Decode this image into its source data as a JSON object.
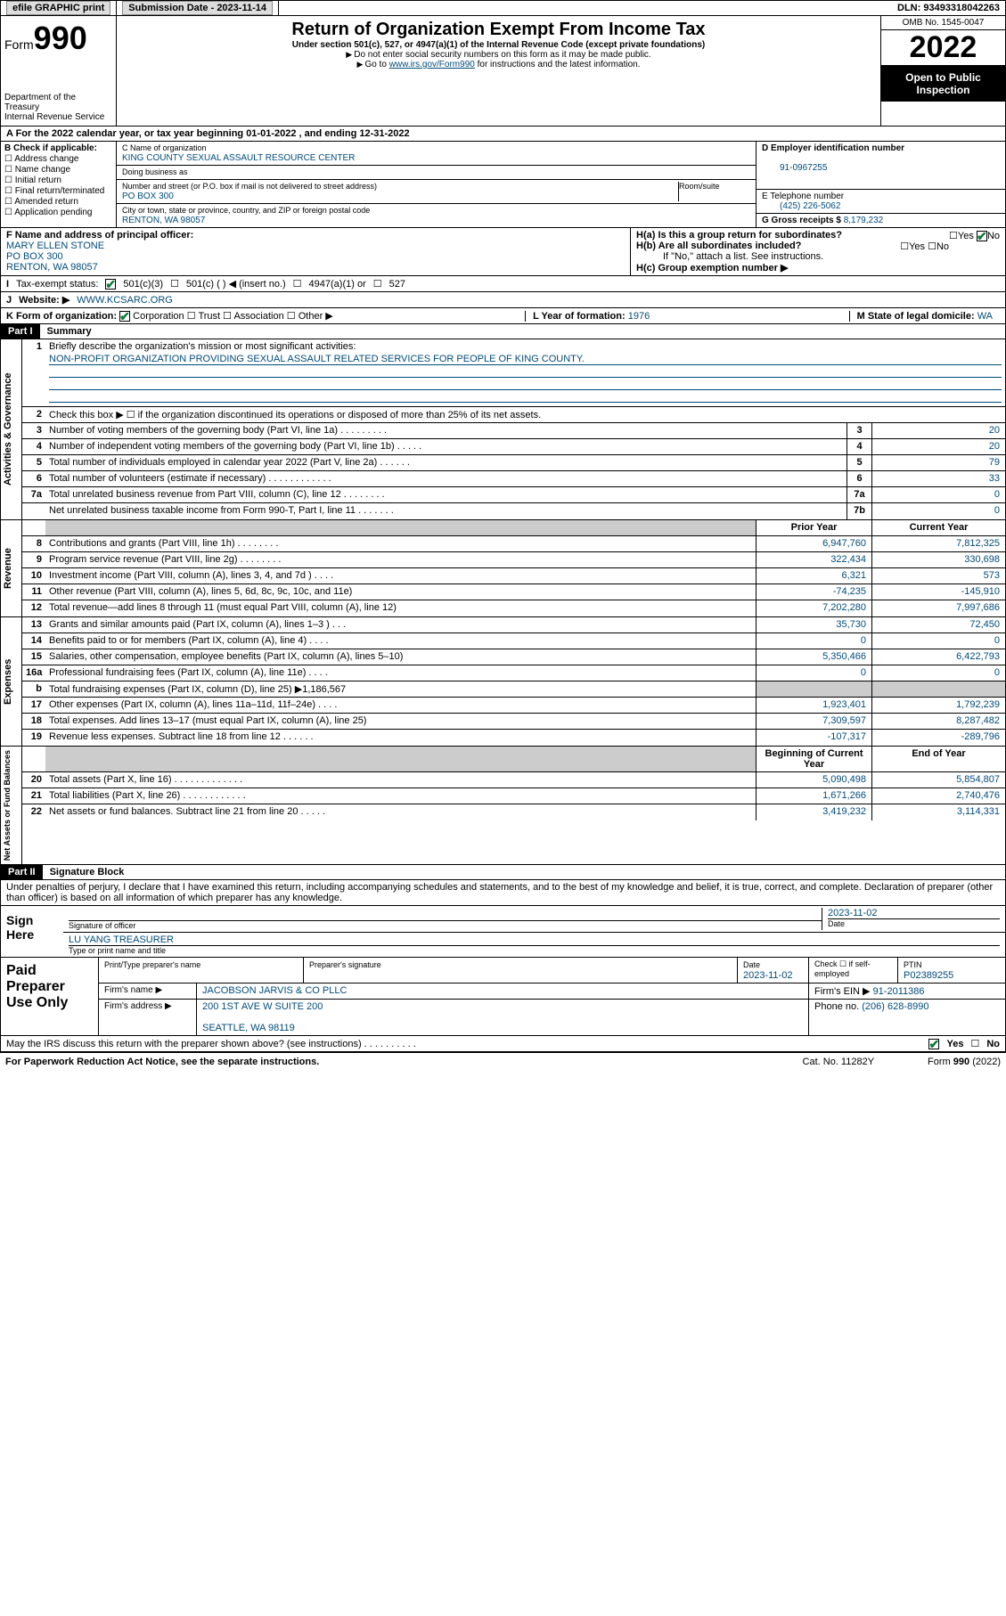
{
  "topbar": {
    "efile": "efile GRAPHIC print",
    "sub_label": "Submission Date - 2023-11-14",
    "dln": "DLN: 93493318042263"
  },
  "header": {
    "form_label": "Form",
    "form_num": "990",
    "dept": "Department of the Treasury\nInternal Revenue Service",
    "title": "Return of Organization Exempt From Income Tax",
    "sub": "Under section 501(c), 527, or 4947(a)(1) of the Internal Revenue Code (except private foundations)",
    "note1": "Do not enter social security numbers on this form as it may be made public.",
    "note2_pre": "Go to ",
    "note2_link": "www.irs.gov/Form990",
    "note2_post": " for instructions and the latest information.",
    "omb": "OMB No. 1545-0047",
    "year": "2022",
    "open": "Open to Public Inspection"
  },
  "line_a": "A For the 2022 calendar year, or tax year beginning 01-01-2022    , and ending 12-31-2022",
  "b": {
    "label": "B Check if applicable:",
    "opts": [
      "Address change",
      "Name change",
      "Initial return",
      "Final return/terminated",
      "Amended return",
      "Application pending"
    ]
  },
  "c": {
    "name_lbl": "C Name of organization",
    "name": "KING COUNTY SEXUAL ASSAULT RESOURCE CENTER",
    "dba_lbl": "Doing business as",
    "addr_lbl": "Number and street (or P.O. box if mail is not delivered to street address)",
    "room_lbl": "Room/suite",
    "addr": "PO BOX 300",
    "city_lbl": "City or town, state or province, country, and ZIP or foreign postal code",
    "city": "RENTON, WA  98057"
  },
  "d": {
    "lbl": "D Employer identification number",
    "val": "91-0967255"
  },
  "e": {
    "lbl": "E Telephone number",
    "val": "(425) 226-5062"
  },
  "g": {
    "lbl": "G Gross receipts $",
    "val": "8,179,232"
  },
  "f": {
    "lbl": "F Name and address of principal officer:",
    "name": "MARY ELLEN STONE",
    "addr1": "PO BOX 300",
    "addr2": "RENTON, WA  98057"
  },
  "h": {
    "a": "H(a)  Is this a group return for subordinates?",
    "a_yes": "Yes",
    "a_no": "No",
    "b": "H(b)  Are all subordinates included?",
    "b_yes": "Yes",
    "b_no": "No",
    "b_note": "If \"No,\" attach a list. See instructions.",
    "c": "H(c)  Group exemption number ▶"
  },
  "i": {
    "lbl": "Tax-exempt status:",
    "o1": "501(c)(3)",
    "o2": "501(c) (    ) ◀ (insert no.)",
    "o3": "4947(a)(1) or",
    "o4": "527"
  },
  "j": {
    "lbl": "Website: ▶",
    "val": "WWW.KCSARC.ORG"
  },
  "k": {
    "lbl": "K Form of organization:",
    "opts": [
      "Corporation",
      "Trust",
      "Association",
      "Other ▶"
    ]
  },
  "l": {
    "lbl": "L Year of formation:",
    "val": "1976"
  },
  "m": {
    "lbl": "M State of legal domicile:",
    "val": "WA"
  },
  "part1": {
    "hdr": "Part I",
    "title": "Summary"
  },
  "s1": {
    "lbl": "Briefly describe the organization's mission or most significant activities:",
    "mission": "NON-PROFIT ORGANIZATION PROVIDING SEXUAL ASSAULT RELATED SERVICES FOR PEOPLE OF KING COUNTY."
  },
  "s2": "Check this box ▶ ☐  if the organization discontinued its operations or disposed of more than 25% of its net assets.",
  "gov": [
    {
      "n": "3",
      "d": "Number of voting members of the governing body (Part VI, line 1a)  .    .    .    .    .    .    .    .    .",
      "b": "3",
      "v": "20"
    },
    {
      "n": "4",
      "d": "Number of independent voting members of the governing body (Part VI, line 1b)  .    .    .    .    .",
      "b": "4",
      "v": "20"
    },
    {
      "n": "5",
      "d": "Total number of individuals employed in calendar year 2022 (Part V, line 2a)  .    .    .    .    .    .",
      "b": "5",
      "v": "79"
    },
    {
      "n": "6",
      "d": "Total number of volunteers (estimate if necessary)  .    .    .    .    .    .    .    .    .    .    .    .",
      "b": "6",
      "v": "33"
    },
    {
      "n": "7a",
      "d": "Total unrelated business revenue from Part VIII, column (C), line 12  .    .    .    .    .    .    .    .",
      "b": "7a",
      "v": "0"
    },
    {
      "n": "",
      "d": "Net unrelated business taxable income from Form 990-T, Part I, line 11  .    .    .    .    .    .    .",
      "b": "7b",
      "v": "0"
    }
  ],
  "col_hdr": {
    "prior": "Prior Year",
    "curr": "Current Year"
  },
  "rev": [
    {
      "n": "8",
      "d": "Contributions and grants (Part VIII, line 1h)  .    .    .    .    .    .    .    .",
      "p": "6,947,760",
      "c": "7,812,325"
    },
    {
      "n": "9",
      "d": "Program service revenue (Part VIII, line 2g)  .    .    .    .    .    .    .    .",
      "p": "322,434",
      "c": "330,698"
    },
    {
      "n": "10",
      "d": "Investment income (Part VIII, column (A), lines 3, 4, and 7d )  .    .    .    .",
      "p": "6,321",
      "c": "573"
    },
    {
      "n": "11",
      "d": "Other revenue (Part VIII, column (A), lines 5, 6d, 8c, 9c, 10c, and 11e)",
      "p": "-74,235",
      "c": "-145,910"
    },
    {
      "n": "12",
      "d": "Total revenue—add lines 8 through 11 (must equal Part VIII, column (A), line 12)",
      "p": "7,202,280",
      "c": "7,997,686"
    }
  ],
  "exp": [
    {
      "n": "13",
      "d": "Grants and similar amounts paid (Part IX, column (A), lines 1–3 )  .    .    .",
      "p": "35,730",
      "c": "72,450"
    },
    {
      "n": "14",
      "d": "Benefits paid to or for members (Part IX, column (A), line 4)  .    .    .    .",
      "p": "0",
      "c": "0"
    },
    {
      "n": "15",
      "d": "Salaries, other compensation, employee benefits (Part IX, column (A), lines 5–10)",
      "p": "5,350,466",
      "c": "6,422,793"
    },
    {
      "n": "16a",
      "d": "Professional fundraising fees (Part IX, column (A), line 11e)  .    .    .    .",
      "p": "0",
      "c": "0"
    },
    {
      "n": "b",
      "d": "Total fundraising expenses (Part IX, column (D), line 25) ▶1,186,567",
      "p": "",
      "c": "",
      "shade": true
    },
    {
      "n": "17",
      "d": "Other expenses (Part IX, column (A), lines 11a–11d, 11f–24e)  .    .    .    .",
      "p": "1,923,401",
      "c": "1,792,239"
    },
    {
      "n": "18",
      "d": "Total expenses. Add lines 13–17 (must equal Part IX, column (A), line 25)",
      "p": "7,309,597",
      "c": "8,287,482"
    },
    {
      "n": "19",
      "d": "Revenue less expenses. Subtract line 18 from line 12  .    .    .    .    .    .",
      "p": "-107,317",
      "c": "-289,796"
    }
  ],
  "net_hdr": {
    "beg": "Beginning of Current Year",
    "end": "End of Year"
  },
  "net": [
    {
      "n": "20",
      "d": "Total assets (Part X, line 16)  .    .    .    .    .    .    .    .    .    .    .    .    .",
      "p": "5,090,498",
      "c": "5,854,807"
    },
    {
      "n": "21",
      "d": "Total liabilities (Part X, line 26)  .    .    .    .    .    .    .    .    .    .    .    .",
      "p": "1,671,266",
      "c": "2,740,476"
    },
    {
      "n": "22",
      "d": "Net assets or fund balances. Subtract line 21 from line 20  .    .    .    .    .",
      "p": "3,419,232",
      "c": "3,114,331"
    }
  ],
  "sidebars": {
    "gov": "Activities & Governance",
    "rev": "Revenue",
    "exp": "Expenses",
    "net": "Net Assets or Fund Balances"
  },
  "part2": {
    "hdr": "Part II",
    "title": "Signature Block"
  },
  "perjury": "Under penalties of perjury, I declare that I have examined this return, including accompanying schedules and statements, and to the best of my knowledge and belief, it is true, correct, and complete. Declaration of preparer (other than officer) is based on all information of which preparer has any knowledge.",
  "sign": {
    "here": "Sign Here",
    "sig_lbl": "Signature of officer",
    "date_lbl": "Date",
    "date": "2023-11-02",
    "name": "LU YANG  TREASURER",
    "name_lbl": "Type or print name and title"
  },
  "paid": {
    "title": "Paid Preparer Use Only",
    "h1": "Print/Type preparer's name",
    "h2": "Preparer's signature",
    "h3": "Date",
    "h3v": "2023-11-02",
    "h4": "Check ☐ if self-employed",
    "h5": "PTIN",
    "h5v": "P02389255",
    "firm_lbl": "Firm's name    ▶",
    "firm": "JACOBSON JARVIS & CO PLLC",
    "ein_lbl": "Firm's EIN ▶",
    "ein": "91-2011386",
    "addr_lbl": "Firm's address ▶",
    "addr1": "200 1ST AVE W SUITE 200",
    "addr2": "SEATTLE, WA  98119",
    "phone_lbl": "Phone no.",
    "phone": "(206) 628-8990"
  },
  "may": {
    "q": "May the IRS discuss this return with the preparer shown above? (see instructions)  .    .    .    .    .    .    .    .    .    .",
    "yes": "Yes",
    "no": "No"
  },
  "footer": {
    "l": "For Paperwork Reduction Act Notice, see the separate instructions.",
    "m": "Cat. No. 11282Y",
    "r": "Form 990 (2022)"
  }
}
